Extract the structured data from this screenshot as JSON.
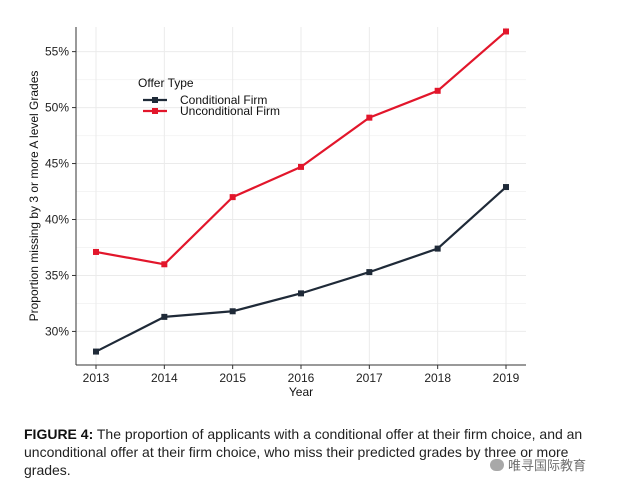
{
  "chart_data": {
    "type": "line",
    "title": "",
    "xlabel": "Year",
    "ylabel": "Proportion missing by 3 or more A level Grades",
    "x": [
      2013,
      2014,
      2015,
      2016,
      2017,
      2018,
      2019
    ],
    "x_tick_labels": [
      "2013",
      "2014",
      "2015",
      "2016",
      "2017",
      "2018",
      "2019"
    ],
    "ylim": [
      0.27,
      0.572
    ],
    "y_ticks": [
      0.3,
      0.35,
      0.4,
      0.45,
      0.5,
      0.55
    ],
    "y_tick_labels": [
      "30%",
      "35%",
      "40%",
      "45%",
      "50%",
      "55%"
    ],
    "grid": true,
    "legend": {
      "title": "Offer Type",
      "position": "top-left"
    },
    "series": [
      {
        "name": "Conditional Firm",
        "color": "#1f2a38",
        "values": [
          0.282,
          0.313,
          0.318,
          0.334,
          0.353,
          0.374,
          0.429
        ]
      },
      {
        "name": "Unconditional Firm",
        "color": "#e2162b",
        "values": [
          0.371,
          0.36,
          0.42,
          0.447,
          0.491,
          0.515,
          0.568
        ]
      }
    ]
  },
  "caption": {
    "label": "FIGURE 4:",
    "text": " The proportion of applicants with a conditional offer at their firm choice, and an unconditional offer at their firm choice, who miss their predicted grades by three or more grades."
  },
  "watermark": {
    "text": "唯寻国际教育"
  }
}
